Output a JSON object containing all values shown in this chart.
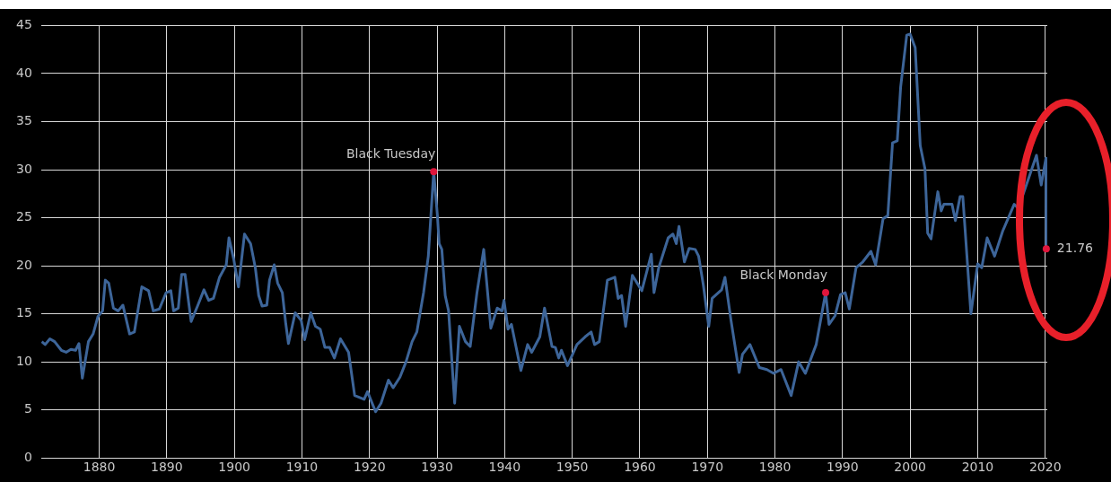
{
  "chart_data": {
    "type": "line",
    "xlim": [
      1871.4,
      2020.3
    ],
    "xticks": [
      1880,
      1890,
      1900,
      1910,
      1920,
      1930,
      1940,
      1950,
      1960,
      1970,
      1980,
      1990,
      2000,
      2010,
      2020
    ],
    "ylim": [
      0,
      45
    ],
    "yticks": [
      0,
      5,
      10,
      15,
      20,
      25,
      30,
      35,
      40,
      45
    ],
    "grid": true,
    "legend": false,
    "marker": "none",
    "line_style": "solid",
    "annotations": [
      {
        "text": "Black Tuesday",
        "x": 1929.5,
        "y": 29.8
      },
      {
        "text": "Black Monday",
        "x": 1987.5,
        "y": 17.2
      },
      {
        "text": "21.76",
        "x": 2020.15,
        "y": 21.76
      }
    ],
    "series": [
      {
        "color": "#3d6599",
        "x": [
          1871.5,
          1872,
          1872.7,
          1873.4,
          1874.4,
          1875.1,
          1875.8,
          1876.5,
          1877,
          1877.5,
          1878.4,
          1879.1,
          1879.8,
          1880.5,
          1880.9,
          1881.4,
          1882.1,
          1882.8,
          1883.5,
          1884.5,
          1885.2,
          1886.3,
          1887.3,
          1888,
          1888.9,
          1889.9,
          1890.6,
          1891,
          1891.7,
          1892.2,
          1892.7,
          1893.6,
          1894.6,
          1895.5,
          1896.2,
          1896.9,
          1897.8,
          1898.8,
          1899.2,
          1899.9,
          1900.6,
          1901.5,
          1902.4,
          1903.1,
          1903.6,
          1904.1,
          1904.8,
          1905.2,
          1905.9,
          1906.4,
          1907.1,
          1907.6,
          1908,
          1909,
          1909.9,
          1910.4,
          1911.3,
          1912,
          1912.7,
          1913.4,
          1914.1,
          1914.8,
          1915.7,
          1916.9,
          1917.8,
          1919.2,
          1919.7,
          1920.9,
          1921.7,
          1922.8,
          1923.5,
          1924.5,
          1925.4,
          1926.3,
          1927,
          1928,
          1928.7,
          1929.5,
          1930.05,
          1930.3,
          1930.7,
          1931.2,
          1931.7,
          1932.6,
          1933.3,
          1934.2,
          1934.9,
          1935.9,
          1936.9,
          1937.95,
          1938.9,
          1939.6,
          1939.9,
          1940.5,
          1941,
          1942.4,
          1943.4,
          1944,
          1945.2,
          1945.9,
          1947,
          1947.5,
          1948,
          1948.4,
          1949.3,
          1950,
          1950.7,
          1951.9,
          1952.8,
          1953.3,
          1954,
          1955.2,
          1956.3,
          1956.8,
          1957.3,
          1957.9,
          1958.9,
          1960.3,
          1961.7,
          1962.1,
          1962.8,
          1964.2,
          1964.9,
          1965.4,
          1965.8,
          1966.6,
          1967.3,
          1968.2,
          1968.7,
          1969.4,
          1970.2,
          1970.7,
          1972.1,
          1972.6,
          1973.5,
          1974.7,
          1975.2,
          1976.3,
          1977.7,
          1978.8,
          1979.8,
          1980.9,
          1982.4,
          1983.5,
          1984.5,
          1986.1,
          1987.5,
          1988,
          1988.9,
          1989.7,
          1990.4,
          1991,
          1992,
          1993,
          1994.2,
          1994.9,
          1996,
          1996.7,
          1997.4,
          1998.1,
          1998.6,
          1999.5,
          2000,
          2000.75,
          2001.5,
          2002.2,
          2002.6,
          2003.1,
          2004.1,
          2004.6,
          2005,
          2006.2,
          2006.7,
          2007.4,
          2007.8,
          2009,
          2010,
          2010.6,
          2011.4,
          2012.5,
          2013.7,
          2015.4,
          2016,
          2017,
          2018.7,
          2019.4,
          2020.1,
          2020.15
        ],
        "values": [
          12.1,
          11.8,
          12.4,
          12.1,
          11.2,
          11,
          11.3,
          11.2,
          11.9,
          8.3,
          12.1,
          12.9,
          14.7,
          15.3,
          18.5,
          18.2,
          15.6,
          15.3,
          15.9,
          12.9,
          13.1,
          17.8,
          17.4,
          15.3,
          15.5,
          17.2,
          17.4,
          15.3,
          15.6,
          19.1,
          19.1,
          14.2,
          15.9,
          17.5,
          16.4,
          16.6,
          18.8,
          20.1,
          22.9,
          20.7,
          17.8,
          23.3,
          22.3,
          19.8,
          16.9,
          15.8,
          15.9,
          18.5,
          20.1,
          18.2,
          17.2,
          14,
          11.9,
          15.1,
          14.3,
          12.3,
          15.1,
          13.7,
          13.4,
          11.5,
          11.5,
          10.4,
          12.4,
          11,
          6.5,
          6.1,
          6.9,
          4.8,
          5.7,
          8.1,
          7.3,
          8.4,
          10,
          12.1,
          13.1,
          17.2,
          21,
          29.8,
          25.2,
          22.3,
          21.7,
          16.9,
          15.3,
          5.7,
          13.7,
          12.1,
          11.6,
          17.2,
          21.7,
          13.5,
          15.6,
          15.3,
          16.4,
          13.4,
          13.9,
          9.1,
          11.8,
          11,
          12.6,
          15.6,
          11.6,
          11.5,
          10.4,
          11.2,
          9.6,
          10.7,
          11.8,
          12.6,
          13.1,
          11.8,
          12.1,
          18.5,
          18.8,
          16.6,
          16.9,
          13.7,
          19,
          17.4,
          21.2,
          17.2,
          19.8,
          22.9,
          23.3,
          22.3,
          24.1,
          20.4,
          21.8,
          21.7,
          21,
          18,
          13.7,
          16.6,
          17.5,
          18.8,
          14.3,
          8.9,
          10.8,
          11.8,
          9.4,
          9.2,
          8.8,
          9.2,
          6.5,
          10,
          8.8,
          11.8,
          17.2,
          13.9,
          14.8,
          17,
          17.2,
          15.5,
          19.8,
          20.4,
          21.5,
          20.1,
          24.9,
          25.2,
          32.8,
          33,
          38.6,
          44,
          44.1,
          42.7,
          32.5,
          30.1,
          23.4,
          22.8,
          27.7,
          25.7,
          26.4,
          26.4,
          24.7,
          27.2,
          27.2,
          15,
          20.2,
          19.8,
          22.9,
          21,
          23.6,
          26.4,
          26,
          28,
          31.5,
          28.4,
          31.2,
          21.76
        ]
      }
    ]
  }
}
